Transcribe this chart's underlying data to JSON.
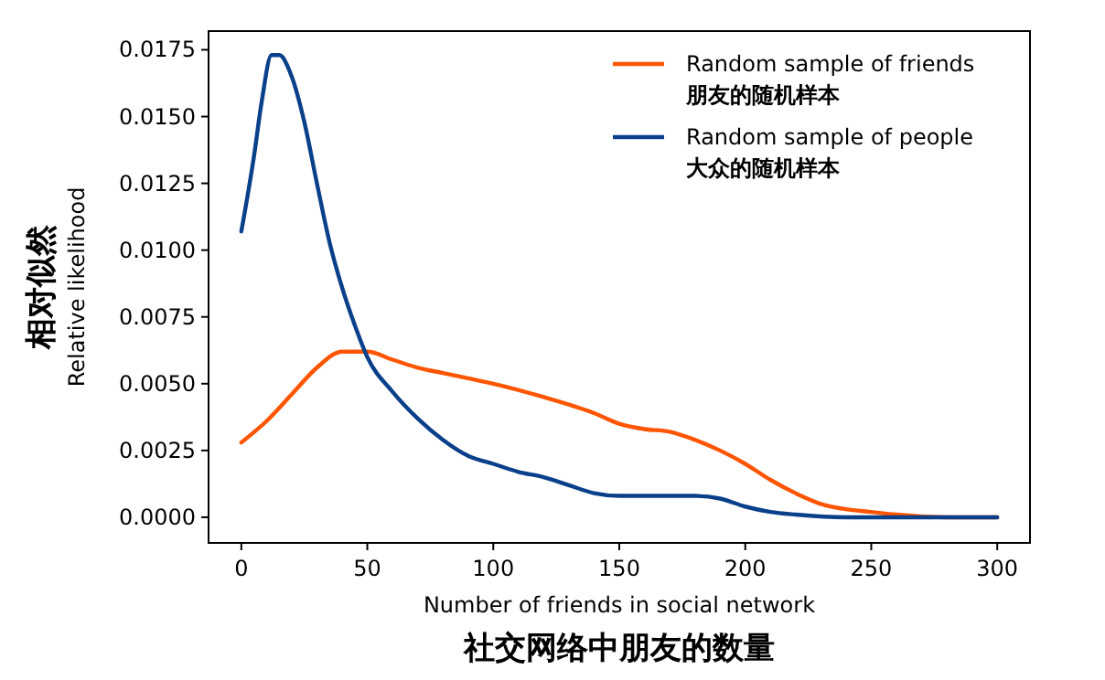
{
  "chart_data": {
    "type": "line",
    "xlabel": "Number of friends in social network\n社交网络中朋友的数量",
    "ylabel": "相对似然\nRelative likelihood",
    "x": [
      0,
      5,
      8,
      12,
      15,
      20,
      25,
      30,
      35,
      40,
      45,
      50,
      60,
      70,
      80,
      90,
      100,
      110,
      120,
      130,
      140,
      150,
      160,
      170,
      180,
      190,
      200,
      210,
      220,
      240,
      260,
      300
    ],
    "series": [
      {
        "name": "Random sample of friends\n朋友的随机样本",
        "color": "#ff5500",
        "x": [
          0,
          10,
          20,
          30,
          40,
          50,
          60,
          70,
          80,
          90,
          100,
          120,
          140,
          150,
          160,
          170,
          180,
          190,
          200,
          210,
          220,
          230,
          240,
          250,
          260,
          280,
          300
        ],
        "values": [
          0.0028,
          0.0036,
          0.0046,
          0.0056,
          0.0062,
          0.0062,
          0.0059,
          0.0056,
          0.0054,
          0.0052,
          0.005,
          0.0045,
          0.0039,
          0.0035,
          0.0033,
          0.0032,
          0.0029,
          0.0025,
          0.002,
          0.0014,
          0.0009,
          0.0005,
          0.0003,
          0.0002,
          0.0001,
          0,
          0
        ]
      },
      {
        "name": "Random sample of people\n大众的随机样本",
        "color": "#0a3f8a",
        "values": [
          0.0107,
          0.0135,
          0.0155,
          0.0173,
          0.0173,
          0.0165,
          0.0148,
          0.0125,
          0.0103,
          0.0086,
          0.0072,
          0.006,
          0.0047,
          0.0037,
          0.0029,
          0.0023,
          0.002,
          0.0017,
          0.0015,
          0.0012,
          0.0009,
          0.0008,
          0.0008,
          0.0008,
          0.0008,
          0.0007,
          0.0004,
          0.0002,
          0.0001,
          0,
          0,
          0
        ]
      }
    ],
    "xlim": [
      -13,
      313
    ],
    "xticks": [
      0,
      50,
      100,
      150,
      200,
      250,
      300
    ],
    "ylim": [
      -0.00096,
      0.0182
    ],
    "yticks": [
      {
        "value": 0,
        "label": "0.0000"
      },
      {
        "value": 0.0025,
        "label": "0.0025"
      },
      {
        "value": 0.005,
        "label": "0.0050"
      },
      {
        "value": 0.0075,
        "label": "0.0075"
      },
      {
        "value": 0.01,
        "label": "0.0100"
      },
      {
        "value": 0.0125,
        "label": "0.0125"
      },
      {
        "value": 0.015,
        "label": "0.0150"
      },
      {
        "value": 0.0175,
        "label": "0.0175"
      }
    ],
    "grid": false,
    "legend": "top right"
  }
}
